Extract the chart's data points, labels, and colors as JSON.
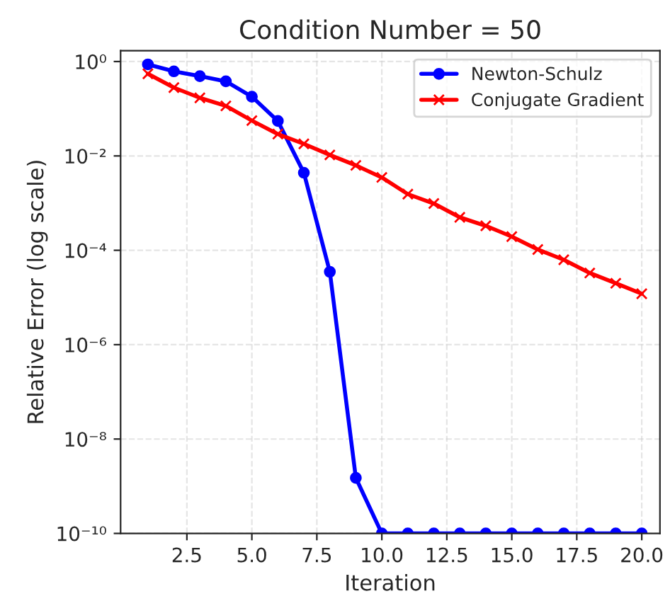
{
  "chart_data": {
    "type": "line",
    "title": "Condition Number = 50",
    "xlabel": "Iteration",
    "ylabel": "Relative Error (log scale)",
    "x": [
      1,
      2,
      3,
      4,
      5,
      6,
      7,
      8,
      9,
      10,
      11,
      12,
      13,
      14,
      15,
      16,
      17,
      18,
      19,
      20
    ],
    "series": [
      {
        "name": "Newton-Schulz",
        "color": "#0000ff",
        "marker": "circle",
        "values": [
          0.87,
          0.62,
          0.49,
          0.38,
          0.18,
          0.055,
          0.0044,
          3.5e-05,
          1.5e-09,
          1e-10,
          1e-10,
          1e-10,
          1e-10,
          1e-10,
          1e-10,
          1e-10,
          1e-10,
          1e-10,
          1e-10,
          1e-10
        ]
      },
      {
        "name": "Conjugate Gradient",
        "color": "#ff0000",
        "marker": "cross",
        "values": [
          0.55,
          0.28,
          0.17,
          0.115,
          0.056,
          0.029,
          0.018,
          0.0105,
          0.0063,
          0.0035,
          0.00155,
          0.00098,
          0.0005,
          0.00033,
          0.000195,
          0.000104,
          6.3e-05,
          3.3e-05,
          2e-05,
          1.2e-05
        ]
      }
    ],
    "log": "y",
    "ylim": [
      1e-10,
      1.7
    ],
    "yticks": [
      {
        "value": 1,
        "label": "10⁰"
      },
      {
        "value": 0.01,
        "label": "10⁻²"
      },
      {
        "value": 0.0001,
        "label": "10⁻⁴"
      },
      {
        "value": 1e-06,
        "label": "10⁻⁶"
      },
      {
        "value": 1e-08,
        "label": "10⁻⁸"
      },
      {
        "value": 1e-10,
        "label": "10⁻¹⁰"
      }
    ],
    "xlim": [
      -0.05,
      20.7
    ],
    "xticks": [
      {
        "value": 2.5,
        "label": "2.5"
      },
      {
        "value": 5,
        "label": "5.0"
      },
      {
        "value": 7.5,
        "label": "7.5"
      },
      {
        "value": 10,
        "label": "10.0"
      },
      {
        "value": 12.5,
        "label": "12.5"
      },
      {
        "value": 15,
        "label": "15.0"
      },
      {
        "value": 17.5,
        "label": "17.5"
      },
      {
        "value": 20,
        "label": "20.0"
      }
    ],
    "grid": true,
    "legend": "top right",
    "line_style": "solid"
  }
}
